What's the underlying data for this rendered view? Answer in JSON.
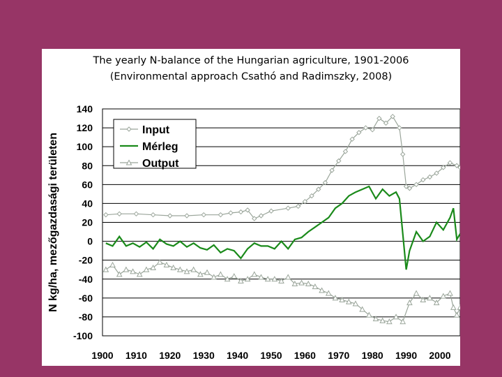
{
  "slide": {
    "title_line1": "The yearly N-balance of the Hungarian agriculture, 1901-2006",
    "title_line2": "(Environmental approach Csathó and Radimszky, 2008)",
    "background_color": "#973566"
  },
  "chart_data": {
    "type": "line",
    "title": "The yearly N-balance of the Hungarian agriculture, 1901-2006",
    "subtitle": "(Environmental approach Csathó and Radimszky, 2008)",
    "xlabel": "",
    "ylabel": "N kg/ha, mezőgazdasági területen",
    "xlim": [
      1900,
      2006
    ],
    "ylim": [
      -100,
      140
    ],
    "x_ticks": [
      1900,
      1910,
      1920,
      1930,
      1940,
      1950,
      1960,
      1970,
      1980,
      1990,
      2000
    ],
    "y_ticks": [
      140,
      120,
      100,
      80,
      60,
      40,
      20,
      0,
      -20,
      -40,
      -60,
      -80,
      -100
    ],
    "grid": "horizontal",
    "legend_position": "top-left",
    "series": [
      {
        "name": "Input",
        "color": "#9aa59a",
        "marker": "diamond",
        "points": [
          [
            1901,
            28
          ],
          [
            1905,
            29
          ],
          [
            1910,
            29
          ],
          [
            1915,
            28
          ],
          [
            1920,
            27
          ],
          [
            1925,
            27
          ],
          [
            1930,
            28
          ],
          [
            1935,
            28
          ],
          [
            1938,
            30
          ],
          [
            1941,
            31
          ],
          [
            1943,
            33
          ],
          [
            1945,
            24
          ],
          [
            1947,
            27
          ],
          [
            1950,
            32
          ],
          [
            1955,
            35
          ],
          [
            1958,
            37
          ],
          [
            1960,
            42
          ],
          [
            1962,
            48
          ],
          [
            1964,
            55
          ],
          [
            1966,
            62
          ],
          [
            1968,
            75
          ],
          [
            1970,
            85
          ],
          [
            1972,
            95
          ],
          [
            1974,
            108
          ],
          [
            1976,
            115
          ],
          [
            1978,
            120
          ],
          [
            1980,
            118
          ],
          [
            1982,
            130
          ],
          [
            1984,
            125
          ],
          [
            1986,
            132
          ],
          [
            1988,
            120
          ],
          [
            1989,
            92
          ],
          [
            1990,
            58
          ],
          [
            1991,
            56
          ],
          [
            1993,
            60
          ],
          [
            1995,
            65
          ],
          [
            1997,
            68
          ],
          [
            1999,
            72
          ],
          [
            2001,
            78
          ],
          [
            2003,
            83
          ],
          [
            2005,
            80
          ],
          [
            2006,
            78
          ]
        ]
      },
      {
        "name": "Mérleg",
        "color": "#1a8a1a",
        "marker": "none",
        "points": [
          [
            1901,
            -2
          ],
          [
            1903,
            -5
          ],
          [
            1905,
            5
          ],
          [
            1907,
            -5
          ],
          [
            1909,
            -2
          ],
          [
            1911,
            -6
          ],
          [
            1913,
            -1
          ],
          [
            1915,
            -8
          ],
          [
            1917,
            2
          ],
          [
            1919,
            -3
          ],
          [
            1921,
            -5
          ],
          [
            1923,
            0
          ],
          [
            1925,
            -6
          ],
          [
            1927,
            -2
          ],
          [
            1929,
            -7
          ],
          [
            1931,
            -9
          ],
          [
            1933,
            -4
          ],
          [
            1935,
            -12
          ],
          [
            1937,
            -8
          ],
          [
            1939,
            -10
          ],
          [
            1941,
            -18
          ],
          [
            1943,
            -8
          ],
          [
            1945,
            -2
          ],
          [
            1947,
            -5
          ],
          [
            1949,
            -5
          ],
          [
            1951,
            -8
          ],
          [
            1953,
            0
          ],
          [
            1955,
            -8
          ],
          [
            1957,
            2
          ],
          [
            1959,
            4
          ],
          [
            1961,
            10
          ],
          [
            1963,
            15
          ],
          [
            1965,
            20
          ],
          [
            1967,
            25
          ],
          [
            1969,
            35
          ],
          [
            1971,
            40
          ],
          [
            1973,
            48
          ],
          [
            1975,
            52
          ],
          [
            1977,
            55
          ],
          [
            1979,
            58
          ],
          [
            1981,
            45
          ],
          [
            1983,
            55
          ],
          [
            1985,
            48
          ],
          [
            1987,
            52
          ],
          [
            1988,
            45
          ],
          [
            1990,
            -30
          ],
          [
            1991,
            -10
          ],
          [
            1993,
            10
          ],
          [
            1995,
            0
          ],
          [
            1997,
            5
          ],
          [
            1999,
            20
          ],
          [
            2001,
            12
          ],
          [
            2003,
            25
          ],
          [
            2004,
            35
          ],
          [
            2005,
            2
          ],
          [
            2006,
            8
          ]
        ]
      },
      {
        "name": "Output",
        "color": "#9aa59a",
        "marker": "triangle",
        "points": [
          [
            1901,
            -30
          ],
          [
            1903,
            -25
          ],
          [
            1905,
            -35
          ],
          [
            1907,
            -30
          ],
          [
            1909,
            -32
          ],
          [
            1911,
            -35
          ],
          [
            1913,
            -30
          ],
          [
            1915,
            -28
          ],
          [
            1917,
            -22
          ],
          [
            1919,
            -25
          ],
          [
            1921,
            -28
          ],
          [
            1923,
            -30
          ],
          [
            1925,
            -32
          ],
          [
            1927,
            -30
          ],
          [
            1929,
            -35
          ],
          [
            1931,
            -33
          ],
          [
            1933,
            -38
          ],
          [
            1935,
            -35
          ],
          [
            1937,
            -40
          ],
          [
            1939,
            -37
          ],
          [
            1941,
            -42
          ],
          [
            1943,
            -40
          ],
          [
            1945,
            -35
          ],
          [
            1947,
            -38
          ],
          [
            1949,
            -40
          ],
          [
            1951,
            -40
          ],
          [
            1953,
            -42
          ],
          [
            1955,
            -38
          ],
          [
            1957,
            -45
          ],
          [
            1959,
            -44
          ],
          [
            1961,
            -45
          ],
          [
            1963,
            -48
          ],
          [
            1965,
            -52
          ],
          [
            1967,
            -55
          ],
          [
            1969,
            -60
          ],
          [
            1971,
            -62
          ],
          [
            1973,
            -64
          ],
          [
            1975,
            -66
          ],
          [
            1977,
            -72
          ],
          [
            1979,
            -78
          ],
          [
            1981,
            -82
          ],
          [
            1983,
            -84
          ],
          [
            1985,
            -85
          ],
          [
            1987,
            -80
          ],
          [
            1989,
            -85
          ],
          [
            1991,
            -65
          ],
          [
            1993,
            -55
          ],
          [
            1995,
            -62
          ],
          [
            1997,
            -60
          ],
          [
            1999,
            -65
          ],
          [
            2001,
            -58
          ],
          [
            2003,
            -55
          ],
          [
            2004,
            -70
          ],
          [
            2005,
            -78
          ],
          [
            2006,
            -70
          ]
        ]
      }
    ]
  }
}
